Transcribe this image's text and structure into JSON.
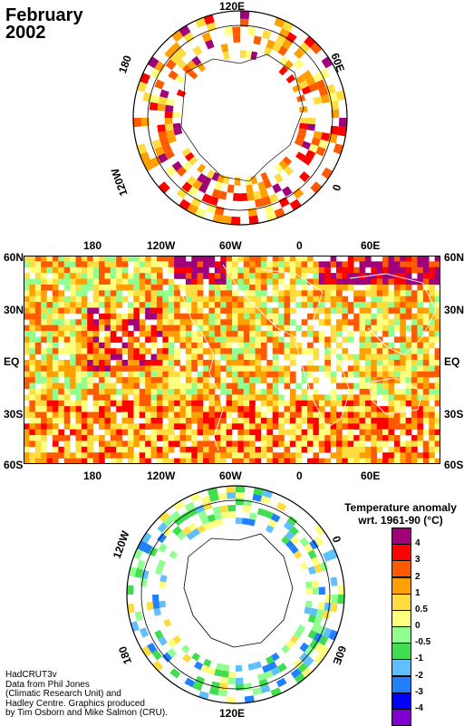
{
  "title": {
    "line1": "February",
    "line2": "2002"
  },
  "world_map": {
    "top_lon_labels": [
      "180",
      "120W",
      "60W",
      "0",
      "60E"
    ],
    "bottom_lon_labels": [
      "180",
      "120W",
      "60W",
      "0",
      "60E"
    ],
    "left_lat_labels": [
      "60N",
      "30N",
      "EQ",
      "30S",
      "60S"
    ],
    "right_lat_labels": [
      "60N",
      "30N",
      "EQ",
      "30S",
      "60S"
    ]
  },
  "north_polar": {
    "labels": [
      "120E",
      "60E",
      "0",
      "120W",
      "180"
    ]
  },
  "south_polar": {
    "labels": [
      "120W",
      "0",
      "60E",
      "120E",
      "180"
    ]
  },
  "legend": {
    "title_line1": "Temperature anomaly",
    "title_line2": "wrt. 1961-90  (°C)",
    "labels": [
      "4",
      "3",
      "2",
      "1",
      "0.5",
      "0",
      "-0.5",
      "-1",
      "-2",
      "-3",
      "-4"
    ],
    "colors": [
      "#a0007a",
      "#ff0000",
      "#ff5a00",
      "#ff9f00",
      "#ffdd40",
      "#ffff80",
      "#90ff90",
      "#40dd50",
      "#60c0ff",
      "#2080ff",
      "#0000ff",
      "#8000d0"
    ]
  },
  "credit": [
    "HadCRUT3v",
    "Data from Phil Jones",
    "(Climatic Research Unit) and",
    "Hadley Centre.  Graphics produced",
    "by Tim Osborn and Mike Salmon (CRU)."
  ]
}
